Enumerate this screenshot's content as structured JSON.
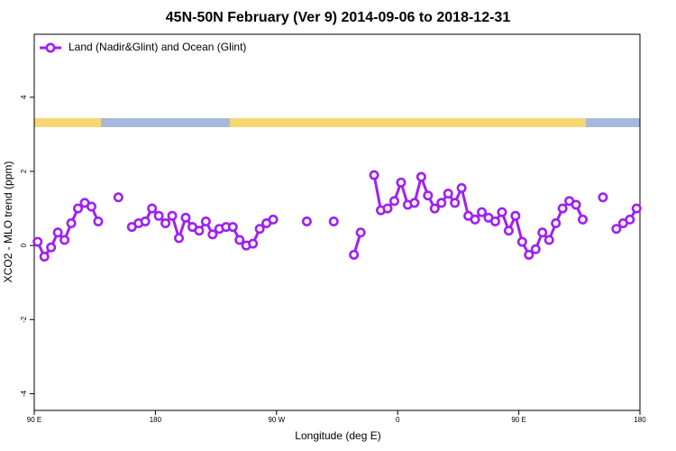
{
  "chart_data": {
    "type": "line",
    "title": "45N-50N February (Ver 9)   2014-09-06 to 2018-12-31",
    "x_label": "Longitude (deg E)",
    "y_label": "XCO2 - MLO trend (ppm)",
    "xlim": [
      90,
      540
    ],
    "ylim": [
      -4.45,
      5.7
    ],
    "xticks": [
      {
        "value": 90,
        "label": "90 E"
      },
      180,
      {
        "value": 270,
        "label": "90 W"
      },
      {
        "value": 360,
        "label": "0"
      },
      {
        "value": 450,
        "label": "90 E"
      },
      {
        "value": 540,
        "label": "180"
      }
    ],
    "yticks": [
      -4,
      -2,
      0,
      2,
      4
    ],
    "legend": "top-left",
    "x": [
      92.5,
      97.5,
      102.5,
      107.5,
      112.5,
      117.5,
      122.5,
      127.5,
      132.5,
      137.5,
      142.5,
      147.5,
      152.5,
      157.5,
      162.5,
      167.5,
      172.5,
      177.5,
      182.5,
      187.5,
      192.5,
      197.5,
      202.5,
      207.5,
      212.5,
      217.5,
      222.5,
      227.5,
      232.5,
      237.5,
      242.5,
      247.5,
      252.5,
      257.5,
      262.5,
      267.5,
      272.5,
      277.5,
      282.5,
      287.5,
      292.5,
      297.5,
      302.5,
      307.5,
      312.5,
      317.5,
      322.5,
      327.5,
      332.5,
      337.5,
      342.5,
      347.5,
      352.5,
      357.5,
      362.5,
      367.5,
      372.5,
      377.5,
      382.5,
      387.5,
      392.5,
      397.5,
      402.5,
      407.5,
      412.5,
      417.5,
      422.5,
      427.5,
      432.5,
      437.5,
      442.5,
      447.5,
      452.5,
      457.5,
      462.5,
      467.5,
      472.5,
      477.5,
      482.5,
      487.5,
      492.5,
      497.5,
      502.5,
      507.5,
      512.5,
      517.5,
      522.5,
      527.5,
      532.5,
      537.5
    ],
    "series": [
      {
        "name": "Land (Nadir&Glint) and Ocean (Glint)",
        "color": "#a020f0",
        "values": [
          0.1,
          -0.3,
          -0.05,
          0.35,
          0.15,
          0.6,
          1.0,
          1.15,
          1.05,
          0.65,
          null,
          null,
          1.3,
          null,
          0.5,
          0.6,
          0.65,
          1.0,
          0.8,
          0.6,
          0.8,
          0.2,
          0.75,
          0.5,
          0.4,
          0.65,
          0.3,
          0.45,
          0.5,
          0.5,
          0.15,
          0,
          0.05,
          0.45,
          0.6,
          0.7,
          null,
          null,
          null,
          null,
          0.65,
          null,
          null,
          null,
          0.65,
          null,
          null,
          -0.25,
          0.35,
          null,
          1.9,
          0.95,
          1.0,
          1.2,
          1.7,
          1.1,
          1.15,
          1.85,
          1.35,
          1.0,
          1.15,
          1.4,
          1.15,
          1.55,
          0.8,
          0.7,
          0.9,
          0.75,
          0.65,
          0.9,
          0.4,
          0.8,
          0.1,
          -0.25,
          -0.1,
          0.35,
          0.15,
          0.6,
          1.0,
          1.2,
          1.1,
          0.7,
          null,
          null,
          1.3,
          null,
          0.45,
          0.6,
          0.7,
          1.0
        ]
      }
    ]
  }
}
